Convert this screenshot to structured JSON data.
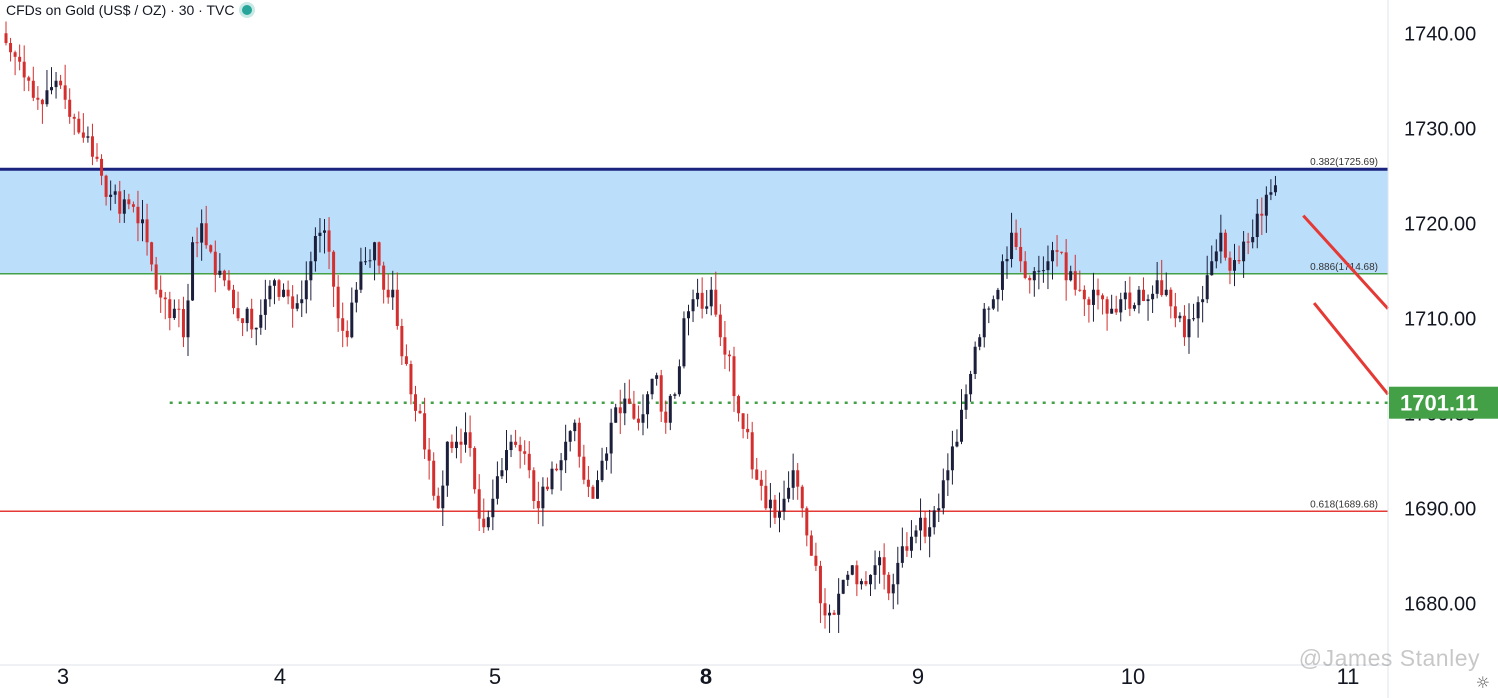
{
  "header": {
    "symbol": "CFDs on Gold (US$ / OZ) · 30 · TVC"
  },
  "watermark": "@James Stanley",
  "colors": {
    "up": "#1b1f3b",
    "down": "#d32f2f",
    "zone": "#bbdefb",
    "resistance": "#1a237e",
    "fib886": "#43a047",
    "fib618": "#e53935",
    "trend": "#e53935",
    "support": "#43a047",
    "price_tag": "#43a047"
  },
  "chart_data": {
    "type": "candlestick",
    "title": "CFDs on Gold (US$ / OZ) · 30 · TVC",
    "y_axis": {
      "ticks": [
        1740,
        1730,
        1720,
        1710,
        1700,
        1690,
        1680
      ],
      "tick_labels": [
        "1740.00",
        "1730.00",
        "1720.00",
        "1710.00",
        "1700.00",
        "1690.00",
        "1680.00"
      ],
      "range": [
        1673.5,
        1743.5
      ],
      "position": "right"
    },
    "x_axis": {
      "labels": [
        "3",
        "4",
        "5",
        "8",
        "9",
        "10",
        "11"
      ],
      "bold": [
        "8"
      ]
    },
    "current_price": {
      "value": 1701.11,
      "label": "1701.11"
    },
    "levels": [
      {
        "name": "0.382(1725.69)",
        "value": 1725.69,
        "style": "solid-dark"
      },
      {
        "name": "0.886(1714.68)",
        "value": 1714.68,
        "style": "solid-green"
      },
      {
        "name": "0.618(1689.68)",
        "value": 1689.68,
        "style": "solid-red"
      }
    ],
    "zone": {
      "from": 1714.68,
      "to": 1725.69
    },
    "support_dotted": {
      "value": 1701.11,
      "from_index": 7
    },
    "trendlines": [
      {
        "from": {
          "index": 48,
          "price": 1720.8
        },
        "to": {
          "index": 67.5,
          "price": 1711.0
        }
      },
      {
        "from": {
          "index": 48.4,
          "price": 1711.6
        },
        "to": {
          "index": 67.5,
          "price": 1702.0
        }
      }
    ],
    "closes": [
      1738,
      1737,
      1735,
      1733,
      1734,
      1735,
      1733,
      1731,
      1729,
      1727,
      1725,
      1723,
      1721,
      1722,
      1720,
      1718,
      1713,
      1712,
      1711,
      1708,
      1718,
      1720,
      1717,
      1715,
      1713,
      1710,
      1711,
      1709,
      1712,
      1714,
      1713,
      1711,
      1712,
      1716,
      1719,
      1717,
      1710,
      1708,
      1713,
      1716,
      1718,
      1713,
      1713,
      1706,
      1702,
      1700,
      1695,
      1690,
      1697,
      1697,
      1698,
      1692,
      1688,
      1691,
      1694,
      1697,
      1696,
      1694,
      1690,
      1692,
      1694,
      1697,
      1699,
      1693,
      1691,
      1695,
      1699,
      1700,
      1701,
      1699,
      1702,
      1704,
      1699,
      1702,
      1710,
      1712,
      1711,
      1713,
      1708,
      1706,
      1700,
      1698,
      1693,
      1690,
      1689,
      1691,
      1694,
      1690,
      1685,
      1680,
      1679,
      1681,
      1683,
      1682,
      1682,
      1684,
      1683,
      1682,
      1686,
      1687,
      1689,
      1688,
      1690,
      1694,
      1697,
      1702,
      1707,
      1711,
      1712,
      1716,
      1719,
      1716,
      1714,
      1715,
      1716,
      1717,
      1714,
      1713,
      1712,
      1713,
      1712,
      1711,
      1712,
      1711,
      1713,
      1712,
      1714,
      1713,
      1710,
      1708,
      1710,
      1712,
      1716,
      1719,
      1715,
      1716,
      1718,
      1721,
      1723,
      1724
    ]
  }
}
